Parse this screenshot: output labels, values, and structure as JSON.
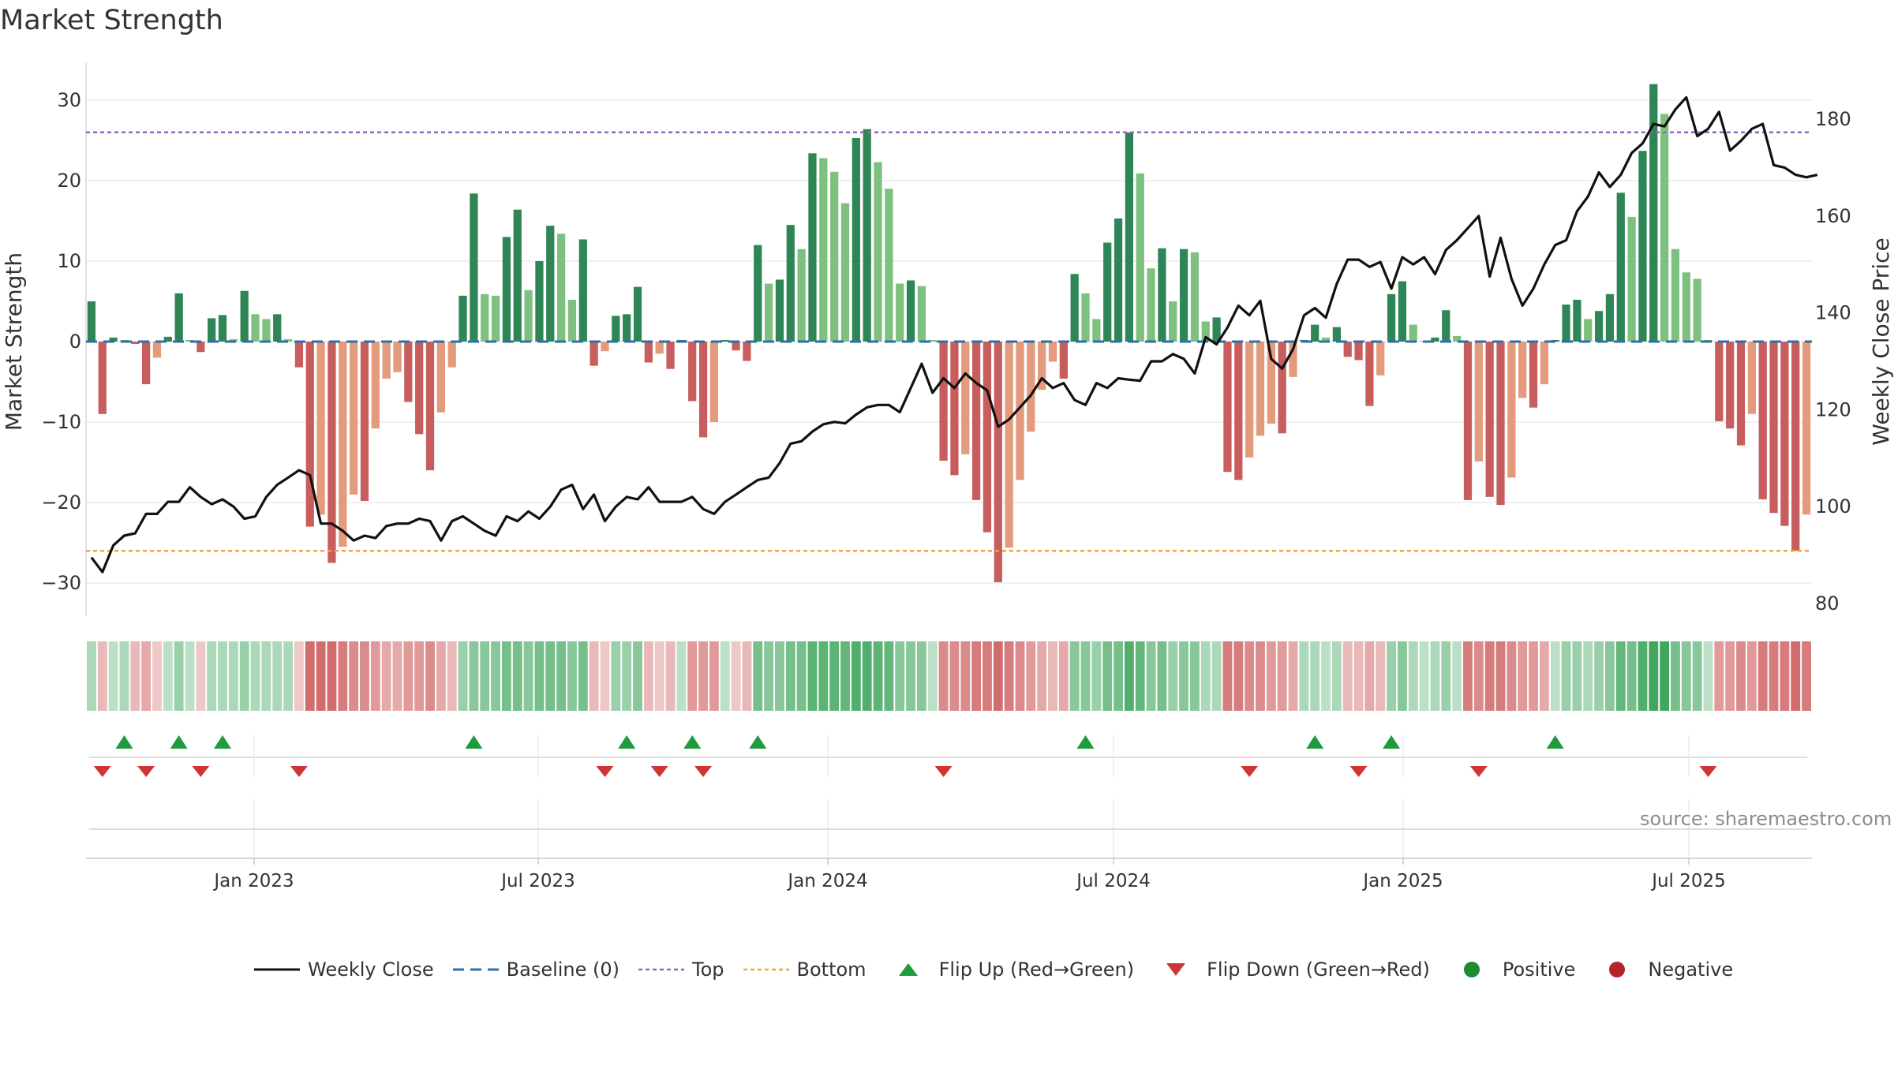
{
  "chart_title": "Market Strength",
  "source_text": "source: sharemaestro.com",
  "colors": {
    "pos_dark": "#2e8656",
    "pos_light": "#7ec07f",
    "neg_dark": "#c85d5e",
    "neg_light": "#e49a7c",
    "line": "#111111",
    "baseline": "#2f6fa3",
    "top": "#9467bd",
    "bottom": "#f2a044",
    "flip_up": "#1e9b3d",
    "flip_down": "#d03434",
    "positive": "#1e8b2e",
    "negative": "#b3242b"
  },
  "chart_data": {
    "type": "bar+line",
    "title": "Market Strength",
    "ylabel_left": "Market Strength",
    "ylabel_right": "Weekly Close Price",
    "ylim_left": [
      -35,
      35
    ],
    "ylim_right": [
      77,
      190
    ],
    "yticks_left": [
      -30,
      -20,
      -10,
      0,
      10,
      20,
      30
    ],
    "yticks_right": [
      80,
      100,
      120,
      140,
      160,
      180
    ],
    "top_threshold": 26,
    "bottom_threshold": -26,
    "x_tick_labels": [
      "Jan 2023",
      "Jul 2023",
      "Jan 2024",
      "Jul 2024",
      "Jan 2025",
      "Jul 2025"
    ],
    "strength": [
      5,
      -9,
      0.5,
      0.2,
      -0.3,
      -5.3,
      -2,
      0.6,
      6,
      0.2,
      -1.3,
      2.9,
      3.3,
      0.3,
      6.3,
      3.4,
      2.8,
      3.4,
      0.3,
      -3.2,
      -23,
      -21.5,
      -27.5,
      -25.5,
      -19,
      -19.8,
      -10.8,
      -4.6,
      -3.8,
      -7.5,
      -11.5,
      -16,
      -8.8,
      -3.2,
      5.7,
      18.4,
      5.9,
      5.7,
      13,
      16.4,
      6.4,
      10,
      14.4,
      13.4,
      5.2,
      12.7,
      -3,
      -1.2,
      3.2,
      3.4,
      6.8,
      -2.6,
      -1.5,
      -3.4,
      0.2,
      -7.4,
      -11.9,
      -10,
      0.2,
      -1.1,
      -2.4,
      12,
      7.2,
      7.7,
      14.5,
      11.5,
      23.4,
      22.8,
      21.1,
      17.2,
      25.3,
      26.4,
      22.3,
      19,
      7.2,
      7.6,
      6.9,
      0.2,
      -14.8,
      -16.6,
      -14,
      -19.7,
      -23.7,
      -29.9,
      -25.6,
      -17.2,
      -11.2,
      -6,
      -2.5,
      -4.6,
      8.4,
      6,
      2.8,
      12.3,
      15.3,
      26,
      20.9,
      9.1,
      11.6,
      5,
      11.5,
      11.1,
      2.5,
      3,
      -16.2,
      -17.2,
      -14.4,
      -11.7,
      -10.2,
      -11.4,
      -4.4,
      0.2,
      2.1,
      0.5,
      1.8,
      -1.9,
      -2.3,
      -8,
      -4.2,
      5.9,
      7.5,
      2.1,
      0.1,
      0.5,
      3.9,
      0.7,
      -19.7,
      -14.9,
      -19.3,
      -20.3,
      -16.9,
      -7,
      -8.2,
      -5.3,
      0.2,
      4.6,
      5.2,
      2.8,
      3.8,
      5.9,
      18.5,
      15.5,
      23.7,
      32,
      28.3,
      11.5,
      8.6,
      7.8,
      0.2,
      -9.9,
      -10.8,
      -12.9,
      -9,
      -19.6,
      -21.3,
      -22.9,
      -26,
      -21.5
    ],
    "weekly_close": [
      89.5,
      86.5,
      92,
      94,
      94.5,
      98.5,
      98.5,
      101,
      101,
      104,
      102,
      100.5,
      101.5,
      100,
      97.5,
      98,
      102,
      104.5,
      106,
      107.5,
      106.5,
      96.5,
      96.5,
      95,
      93,
      94,
      93.5,
      96,
      96.5,
      96.5,
      97.5,
      97,
      93,
      97,
      98,
      96.5,
      95,
      94,
      98,
      97,
      99,
      97.5,
      100,
      103.5,
      104.5,
      99.5,
      102.5,
      97,
      100,
      102,
      101.5,
      104,
      101,
      101,
      101,
      102,
      99.5,
      98.5,
      101,
      102.5,
      104,
      105.5,
      106,
      109,
      113,
      113.5,
      115.5,
      117,
      117.5,
      117.2,
      119,
      120.5,
      121,
      121,
      119.5,
      124.5,
      129.5,
      123.5,
      126.5,
      124.5,
      127.5,
      125.5,
      124,
      116.5,
      118,
      120.5,
      123,
      126.5,
      124.5,
      125.5,
      122,
      121,
      125.5,
      124.5,
      126.5,
      126.2,
      126,
      130,
      130,
      131.5,
      130.5,
      127.5,
      135,
      133.5,
      137,
      141.5,
      139.5,
      142.5,
      130.5,
      128.5,
      132.5,
      139.5,
      141,
      139,
      146,
      151,
      151,
      149.5,
      150.5,
      145,
      151.5,
      150,
      151.5,
      148,
      153,
      155,
      157.5,
      160,
      147.5,
      155.5,
      147,
      141.5,
      145,
      150,
      154,
      155,
      161,
      164,
      169,
      166,
      168.5,
      173,
      175,
      179,
      178.5,
      182,
      184.5,
      176.5,
      178,
      181.5,
      173.5,
      175.5,
      178,
      179,
      170.5,
      170,
      168.5,
      168,
      168.5
    ],
    "regime_values": [
      0.3,
      -0.3,
      0.2,
      0.3,
      -0.3,
      -0.4,
      -0.2,
      0.2,
      0.4,
      0.2,
      -0.2,
      0.3,
      0.3,
      0.3,
      0.4,
      0.3,
      0.3,
      0.3,
      0.3,
      -0.2,
      -0.8,
      -0.8,
      -0.8,
      -0.7,
      -0.6,
      -0.6,
      -0.5,
      -0.4,
      -0.4,
      -0.5,
      -0.5,
      -0.6,
      -0.4,
      -0.3,
      0.4,
      0.5,
      0.5,
      0.5,
      0.6,
      0.6,
      0.5,
      0.6,
      0.6,
      0.6,
      0.5,
      0.6,
      -0.3,
      -0.2,
      0.4,
      0.4,
      0.5,
      -0.3,
      -0.2,
      -0.3,
      0.2,
      -0.5,
      -0.5,
      -0.5,
      0.2,
      -0.2,
      -0.3,
      0.6,
      0.5,
      0.5,
      0.6,
      0.6,
      0.75,
      0.75,
      0.75,
      0.7,
      0.8,
      0.8,
      0.75,
      0.7,
      0.5,
      0.5,
      0.5,
      0.2,
      -0.6,
      -0.6,
      -0.6,
      -0.7,
      -0.7,
      -0.8,
      -0.7,
      -0.6,
      -0.5,
      -0.4,
      -0.3,
      -0.4,
      0.5,
      0.5,
      0.4,
      0.6,
      0.6,
      0.8,
      0.7,
      0.5,
      0.6,
      0.4,
      0.5,
      0.5,
      0.3,
      0.3,
      -0.7,
      -0.7,
      -0.6,
      -0.6,
      -0.5,
      -0.5,
      -0.4,
      0.3,
      0.3,
      0.2,
      0.3,
      -0.3,
      -0.3,
      -0.4,
      -0.3,
      0.4,
      0.5,
      0.3,
      0.2,
      0.3,
      0.4,
      0.2,
      -0.7,
      -0.6,
      -0.7,
      -0.7,
      -0.6,
      -0.5,
      -0.5,
      -0.4,
      0.2,
      0.4,
      0.4,
      0.3,
      0.4,
      0.5,
      0.7,
      0.6,
      0.8,
      0.9,
      0.9,
      0.6,
      0.5,
      0.5,
      0.2,
      -0.5,
      -0.5,
      -0.6,
      -0.5,
      -0.7,
      -0.7,
      -0.7,
      -0.8,
      -0.7
    ],
    "flip_up_weeks": [
      3,
      8,
      12,
      35,
      49,
      55,
      61,
      91,
      112,
      119,
      134
    ],
    "flip_down_weeks": [
      1,
      5,
      10,
      19,
      47,
      52,
      56,
      78,
      106,
      116,
      127,
      148
    ],
    "legend": [
      "Weekly Close",
      "Baseline (0)",
      "Top",
      "Bottom",
      "Flip Up (Red→Green)",
      "Flip Down (Green→Red)",
      "Positive",
      "Negative"
    ]
  }
}
